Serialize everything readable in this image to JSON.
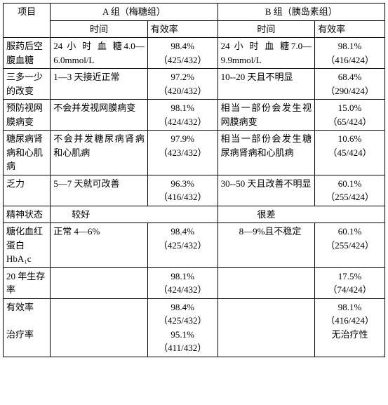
{
  "header": {
    "item": "项目",
    "groupA": "A 组（梅糖组）",
    "groupB": "B 组（胰岛素组）",
    "time": "时间",
    "rate": "有效率"
  },
  "rows": [
    {
      "item": "服药后空腹血糖",
      "a_time": "24 小 时 血 糖4.0—6.0mmol/L",
      "a_rate": "98.4%\n（425/432）",
      "b_time": "24 小 时 血 糖7.0—9.9mmol/L",
      "b_rate": "98.1%\n（416/424）"
    },
    {
      "item": "三多一少的改变",
      "a_time": "1—3 天接近正常",
      "a_rate": "97.2%\n（420/432）",
      "b_time": "10--20 天且不明显",
      "b_rate": "68.4%\n（290/424）"
    },
    {
      "item": "预防视网膜病变",
      "a_time": "不会并发视网膜病变",
      "a_rate": "98.1%\n（424/432）",
      "b_time": "相当一部份会发生视网膜病变",
      "b_rate": "15.0%\n（65/424）"
    },
    {
      "item": "糖尿病肾病和心肌病",
      "a_time": "不会并发糖尿病肾病和心肌病",
      "a_rate": "97.9%\n（423/432）",
      "b_time": "相当一部份会发生糖尿病肾病和心肌病",
      "b_rate": "10.6%\n（45/424）"
    },
    {
      "item": "乏力",
      "a_time": "5—7 天就可改善",
      "a_rate": "96.3%\n（416/432）",
      "b_time": "30--50 天且改善不明显",
      "b_rate": "60.1%\n（255/424）"
    },
    {
      "item": "精神状态",
      "a_merge": "　　较好",
      "b_merge": "　　　　很差"
    },
    {
      "item": "糖化血红蛋白HbA₁c",
      "a_time": "正常 4—6%",
      "a_rate": "98.4%\n（425/432）",
      "b_time": "　　8—9%且不稳定",
      "b_rate": "60.1%\n（255/424）"
    },
    {
      "item": "20 年生存率",
      "a_time": "",
      "a_rate": "98.1%\n（424/432）",
      "b_time": "",
      "b_rate": "17.5%\n（74/424）"
    },
    {
      "item": "有效率\n\n治疗率",
      "a_time": "",
      "a_rate": "98.4%\n（425/432）\n95.1%\n（411/432）",
      "b_time": "",
      "b_rate": "98.1%\n（416/424）\n无治疗性"
    }
  ]
}
